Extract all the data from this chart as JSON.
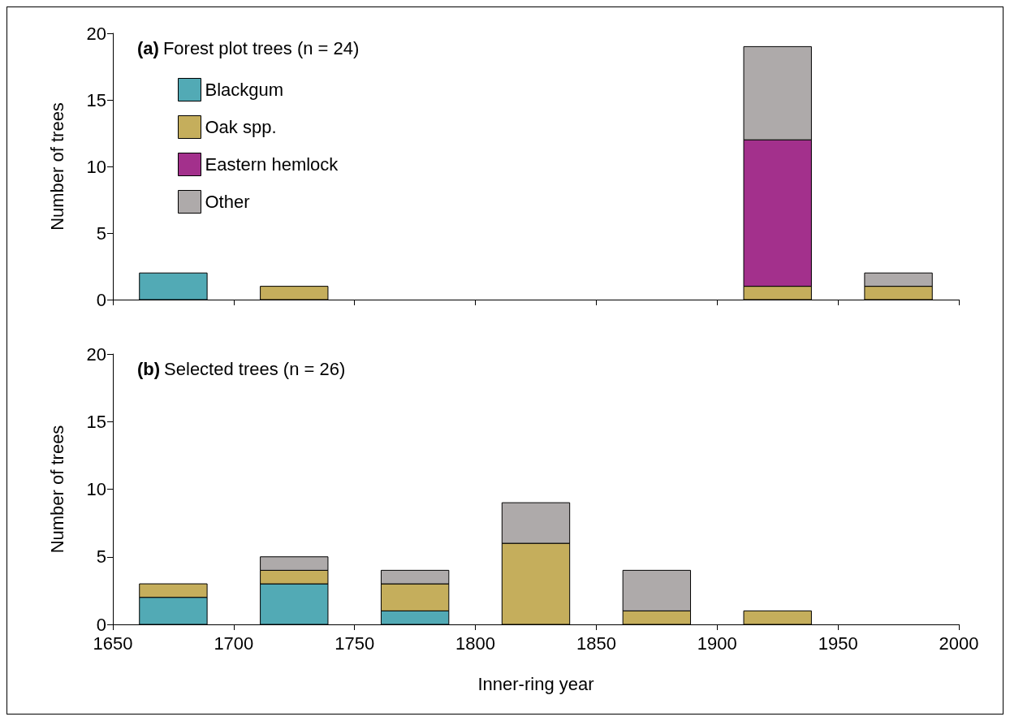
{
  "chart_data": [
    {
      "type": "bar",
      "title": "(a) Forest plot trees (n = 24)",
      "ylabel": "Number of trees",
      "stacked": true,
      "legend": "top left",
      "grid": false,
      "tick_labels": "y",
      "x": [
        1675,
        1725,
        1775,
        1825,
        1875,
        1925,
        1975
      ],
      "series": [
        {
          "name": "Blackgum",
          "color": "#52aab5",
          "values": [
            2,
            0,
            0,
            0,
            0,
            0,
            0
          ]
        },
        {
          "name": "Oak spp.",
          "color": "#c5ae5c",
          "values": [
            0,
            1,
            0,
            0,
            0,
            1,
            1
          ]
        },
        {
          "name": "Eastern hemlock",
          "color": "#a3308c",
          "values": [
            0,
            0,
            0,
            0,
            0,
            11,
            0
          ]
        },
        {
          "name": "Other",
          "color": "#aeaaaa",
          "values": [
            0,
            0,
            0,
            0,
            0,
            7,
            1
          ]
        }
      ],
      "xlim": [
        1650,
        2000
      ],
      "xticks": [
        1650,
        1700,
        1750,
        1800,
        1850,
        1900,
        1950,
        2000
      ],
      "ylim": [
        0,
        20
      ],
      "yticks": [
        0,
        5,
        10,
        15,
        20
      ]
    },
    {
      "type": "bar",
      "title": "(b) Selected trees (n = 26)",
      "xlabel": "Inner-ring year",
      "ylabel": "Number of trees",
      "stacked": true,
      "grid": false,
      "x": [
        1675,
        1725,
        1775,
        1825,
        1875,
        1925,
        1975
      ],
      "series": [
        {
          "color": "#52aab5",
          "values": [
            2,
            3,
            1,
            0,
            0,
            0,
            0
          ]
        },
        {
          "color": "#c5ae5c",
          "values": [
            1,
            1,
            2,
            6,
            1,
            1,
            0
          ]
        },
        {
          "color": "#aeaaaa",
          "values": [
            0,
            1,
            1,
            3,
            3,
            0,
            0
          ]
        }
      ],
      "xlim": [
        1650,
        2000
      ],
      "xticks": [
        1650,
        1700,
        1750,
        1800,
        1850,
        1900,
        1950,
        2000
      ],
      "ylim": [
        0,
        20
      ],
      "yticks": [
        0,
        5,
        10,
        15,
        20
      ]
    }
  ]
}
